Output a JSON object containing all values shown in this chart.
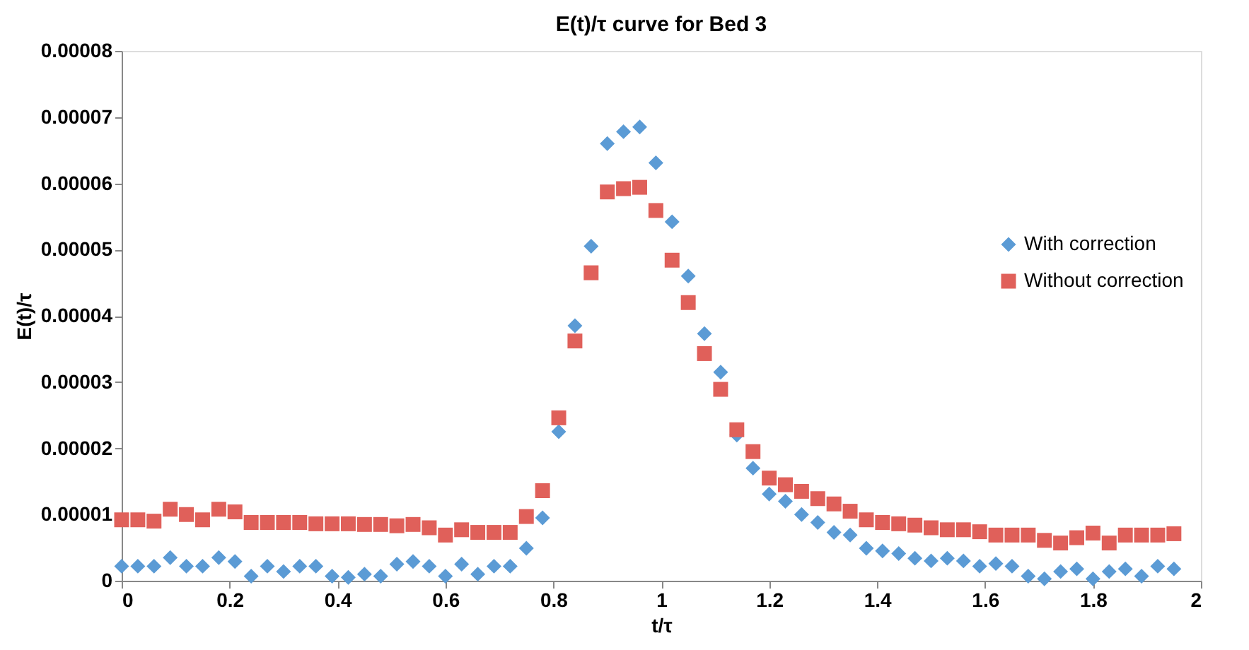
{
  "chart_data": {
    "type": "scatter",
    "title": "E(t)/τ curve for Bed 3",
    "xlabel": "t/τ",
    "ylabel": "E(t)/τ",
    "x": [
      0,
      0.03,
      0.06,
      0.09,
      0.12,
      0.15,
      0.18,
      0.21,
      0.24,
      0.27,
      0.3,
      0.33,
      0.36,
      0.39,
      0.42,
      0.45,
      0.48,
      0.51,
      0.54,
      0.57,
      0.6,
      0.63,
      0.66,
      0.69,
      0.72,
      0.75,
      0.78,
      0.81,
      0.84,
      0.87,
      0.9,
      0.93,
      0.96,
      0.99,
      1.02,
      1.05,
      1.08,
      1.11,
      1.14,
      1.17,
      1.2,
      1.23,
      1.26,
      1.29,
      1.32,
      1.35,
      1.38,
      1.41,
      1.44,
      1.47,
      1.5,
      1.53,
      1.56,
      1.59,
      1.62,
      1.65,
      1.68,
      1.71,
      1.74,
      1.77,
      1.8,
      1.83,
      1.86,
      1.89,
      1.92,
      1.95
    ],
    "series": [
      {
        "name": "With correction",
        "color": "#5b9bd5",
        "marker": "diamond",
        "values": [
          2.2e-06,
          2.2e-06,
          2.2e-06,
          3.5e-06,
          2.2e-06,
          2.2e-06,
          3.5e-06,
          2.9e-06,
          7e-07,
          2.2e-06,
          1.4e-06,
          2.2e-06,
          2.2e-06,
          7e-07,
          5e-07,
          1e-06,
          7e-07,
          2.5e-06,
          2.9e-06,
          2.2e-06,
          7e-07,
          2.5e-06,
          1e-06,
          2.2e-06,
          2.2e-06,
          4.9e-06,
          9.5e-06,
          2.25e-05,
          3.85e-05,
          5.05e-05,
          6.6e-05,
          6.78e-05,
          6.85e-05,
          6.31e-05,
          5.42e-05,
          4.6e-05,
          3.73e-05,
          3.15e-05,
          2.2e-05,
          1.7e-05,
          1.31e-05,
          1.2e-05,
          1e-05,
          8.8e-06,
          7.3e-06,
          6.9e-06,
          4.9e-06,
          4.5e-06,
          4.1e-06,
          3.4e-06,
          3e-06,
          3.4e-06,
          3e-06,
          2.2e-06,
          2.6e-06,
          2.2e-06,
          7e-07,
          3e-07,
          1.4e-06,
          1.8e-06,
          3e-07,
          1.4e-06,
          1.8e-06,
          7e-07,
          2.2e-06,
          1.8e-06
        ]
      },
      {
        "name": "Without correction",
        "color": "#e0605a",
        "marker": "square",
        "values": [
          9.2e-06,
          9.2e-06,
          9e-06,
          1.08e-05,
          1e-05,
          9.2e-06,
          1.08e-05,
          1.04e-05,
          8.8e-06,
          8.8e-06,
          8.8e-06,
          8.8e-06,
          8.6e-06,
          8.6e-06,
          8.6e-06,
          8.5e-06,
          8.5e-06,
          8.3e-06,
          8.5e-06,
          8e-06,
          6.9e-06,
          7.7e-06,
          7.3e-06,
          7.3e-06,
          7.3e-06,
          9.7e-06,
          1.36e-05,
          2.46e-05,
          3.62e-05,
          4.65e-05,
          5.87e-05,
          5.92e-05,
          5.94e-05,
          5.59e-05,
          4.84e-05,
          4.2e-05,
          3.43e-05,
          2.89e-05,
          2.28e-05,
          1.95e-05,
          1.55e-05,
          1.45e-05,
          1.35e-05,
          1.24e-05,
          1.16e-05,
          1.05e-05,
          9.2e-06,
          8.8e-06,
          8.6e-06,
          8.4e-06,
          8e-06,
          7.7e-06,
          7.7e-06,
          7.4e-06,
          6.9e-06,
          6.9e-06,
          6.9e-06,
          6.1e-06,
          5.7e-06,
          6.5e-06,
          7.2e-06,
          5.7e-06,
          6.9e-06,
          6.9e-06,
          6.9e-06,
          7.1e-06
        ]
      }
    ],
    "xlim": [
      0,
      2
    ],
    "xticks": [
      0,
      0.2,
      0.4,
      0.6,
      0.8,
      1,
      1.2,
      1.4,
      1.6,
      1.8,
      2
    ],
    "ylim": [
      0,
      8e-05
    ],
    "yticks": [
      0,
      {
        "value": 1e-05,
        "label": "0.00001"
      },
      {
        "value": 2e-05,
        "label": "0.00002"
      },
      {
        "value": 3e-05,
        "label": "0.00003"
      },
      {
        "value": 4e-05,
        "label": "0.00004"
      },
      {
        "value": 5e-05,
        "label": "0.00005"
      },
      {
        "value": 6e-05,
        "label": "0.00006"
      },
      {
        "value": 7e-05,
        "label": "0.00007"
      },
      {
        "value": 8e-05,
        "label": "0.00008"
      }
    ],
    "legend": "right",
    "grid": false
  }
}
